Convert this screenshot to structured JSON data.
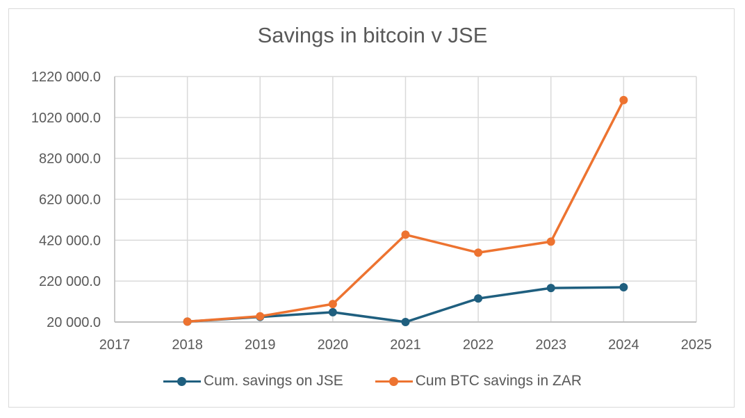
{
  "chart_data": {
    "type": "line",
    "title": "Savings in bitcoin v JSE",
    "xlabel": "",
    "ylabel": "",
    "x": [
      2018,
      2019,
      2020,
      2021,
      2022,
      2023,
      2024
    ],
    "xlim": [
      2017,
      2025
    ],
    "x_ticks": [
      "2017",
      "2018",
      "2019",
      "2020",
      "2021",
      "2022",
      "2023",
      "2024",
      "2025"
    ],
    "ylim": [
      20000,
      1220000
    ],
    "y_ticks": [
      "20 000.0",
      "220 000.0",
      "420 000.0",
      "620 000.0",
      "820 000.0",
      "1020 000.0",
      "1220 000.0"
    ],
    "grid": true,
    "legend_position": "bottom",
    "series": [
      {
        "name": "Cum. savings on JSE",
        "color": "#1f5f7f",
        "values": [
          22000,
          45000,
          68000,
          20000,
          135000,
          186000,
          190000
        ]
      },
      {
        "name": "Cum BTC savings in ZAR",
        "color": "#ed7330",
        "values": [
          22000,
          48000,
          108000,
          447000,
          359000,
          413000,
          1105000
        ]
      }
    ]
  }
}
